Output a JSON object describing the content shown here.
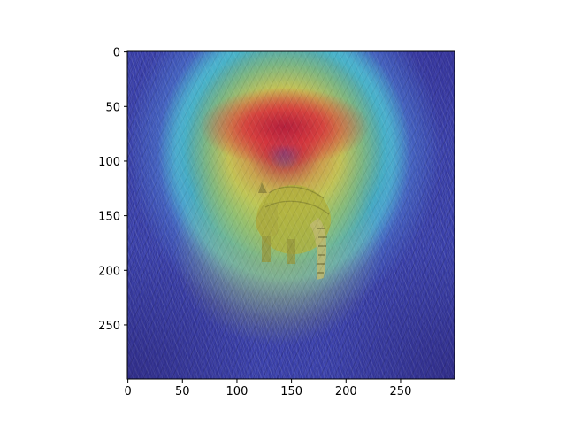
{
  "chart_data": {
    "type": "heatmap",
    "title": "",
    "xlabel": "",
    "ylabel": "",
    "xlim": [
      0,
      299
    ],
    "ylim": [
      299,
      0
    ],
    "x_ticks": [
      0,
      50,
      100,
      150,
      200,
      250
    ],
    "y_ticks": [
      0,
      50,
      100,
      150,
      200,
      250
    ],
    "x_tick_labels": [
      "0",
      "50",
      "100",
      "150",
      "200",
      "250"
    ],
    "y_tick_labels": [
      "0",
      "50",
      "100",
      "150",
      "200",
      "250"
    ],
    "y_inverted": true,
    "grid": false,
    "colormap": "jet",
    "image_content": "armadillo-in-grass",
    "activation_peak": {
      "x": 145,
      "y": 75
    },
    "colors": {
      "hot": "#d7303c",
      "warm": "#e6aa3c",
      "mid": "#dcd746",
      "cool": "#46c8c8",
      "cold": "#3a3fa8"
    }
  }
}
